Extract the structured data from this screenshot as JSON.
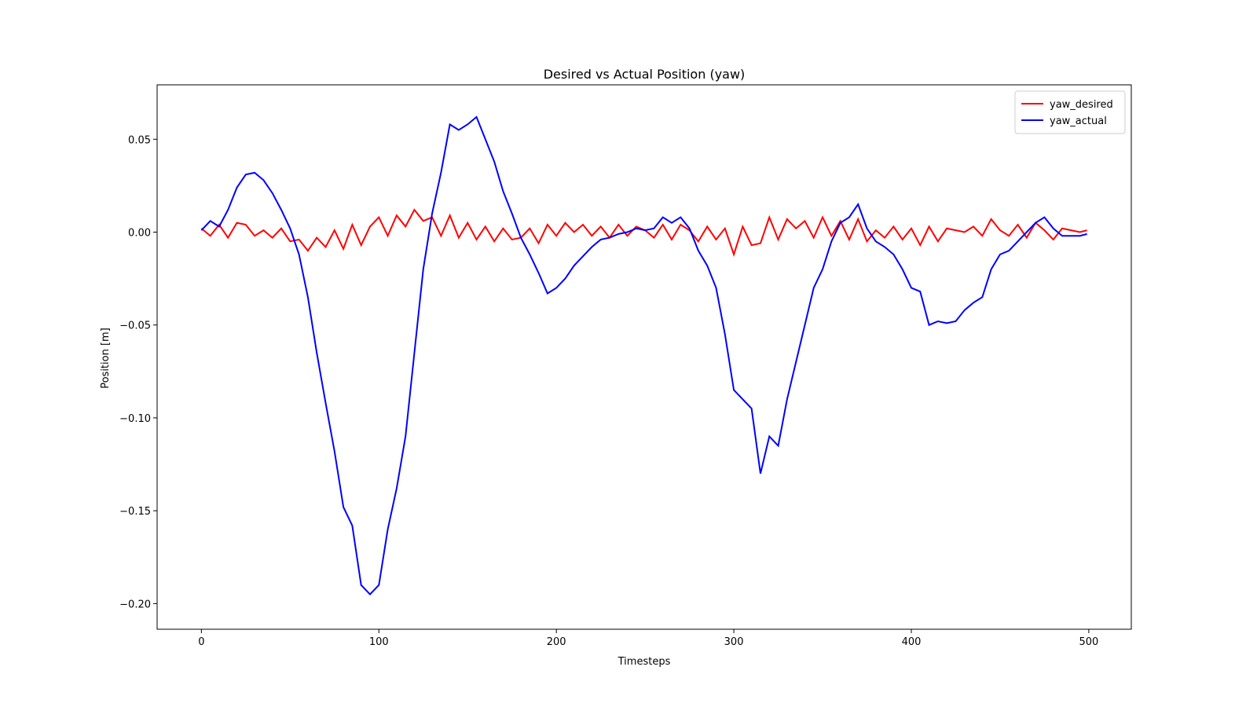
{
  "chart_data": {
    "type": "line",
    "title": "Desired vs Actual Position (yaw)",
    "x_label": "Timesteps",
    "y_label": "Position [m]",
    "x": [
      0,
      5,
      10,
      15,
      20,
      25,
      30,
      35,
      40,
      45,
      50,
      55,
      60,
      65,
      70,
      75,
      80,
      85,
      90,
      95,
      100,
      105,
      110,
      115,
      120,
      125,
      130,
      135,
      140,
      145,
      150,
      155,
      160,
      165,
      170,
      175,
      180,
      185,
      190,
      195,
      200,
      205,
      210,
      215,
      220,
      225,
      230,
      235,
      240,
      245,
      250,
      255,
      260,
      265,
      270,
      275,
      280,
      285,
      290,
      295,
      300,
      305,
      310,
      315,
      320,
      325,
      330,
      335,
      340,
      345,
      350,
      355,
      360,
      365,
      370,
      375,
      380,
      385,
      390,
      395,
      400,
      405,
      410,
      415,
      420,
      425,
      430,
      435,
      440,
      445,
      450,
      455,
      460,
      465,
      470,
      475,
      480,
      485,
      490,
      495,
      499
    ],
    "series": [
      {
        "name": "yaw_desired",
        "color": "#ff0000",
        "values": [
          0.002,
          -0.002,
          0.004,
          -0.003,
          0.005,
          0.004,
          -0.002,
          0.001,
          -0.003,
          0.002,
          -0.005,
          -0.004,
          -0.01,
          -0.003,
          -0.008,
          0.001,
          -0.009,
          0.004,
          -0.007,
          0.003,
          0.008,
          -0.002,
          0.009,
          0.003,
          0.012,
          0.006,
          0.008,
          -0.002,
          0.009,
          -0.003,
          0.005,
          -0.004,
          0.003,
          -0.005,
          0.002,
          -0.004,
          -0.003,
          0.002,
          -0.006,
          0.004,
          -0.002,
          0.005,
          0,
          0.004,
          -0.002,
          0.003,
          -0.003,
          0.004,
          -0.002,
          0.003,
          0.001,
          -0.003,
          0.004,
          -0.004,
          0.004,
          0.001,
          -0.005,
          0.003,
          -0.004,
          0.002,
          -0.012,
          0.003,
          -0.007,
          -0.006,
          0.008,
          -0.004,
          0.007,
          0.002,
          0.006,
          -0.003,
          0.008,
          -0.002,
          0.006,
          -0.004,
          0.007,
          -0.005,
          0.001,
          -0.003,
          0.003,
          -0.004,
          0.002,
          -0.007,
          0.003,
          -0.005,
          0.002,
          0.001,
          0,
          0.003,
          -0.002,
          0.007,
          0.001,
          -0.002,
          0.004,
          -0.003,
          0.005,
          0.001,
          -0.004,
          0.002,
          0.001,
          0,
          0.001
        ]
      },
      {
        "name": "yaw_actual",
        "color": "#0000ff",
        "values": [
          0.001,
          0.006,
          0.003,
          0.012,
          0.024,
          0.031,
          0.032,
          0.028,
          0.021,
          0.012,
          0.002,
          -0.012,
          -0.035,
          -0.065,
          -0.092,
          -0.118,
          -0.148,
          -0.158,
          -0.19,
          -0.195,
          -0.19,
          -0.16,
          -0.138,
          -0.11,
          -0.065,
          -0.02,
          0.01,
          0.032,
          0.058,
          0.055,
          0.058,
          0.062,
          0.05,
          0.038,
          0.022,
          0.01,
          -0.003,
          -0.012,
          -0.022,
          -0.033,
          -0.03,
          -0.025,
          -0.018,
          -0.013,
          -0.008,
          -0.004,
          -0.003,
          -0.001,
          0,
          0.002,
          0.001,
          0.002,
          0.008,
          0.005,
          0.008,
          0.002,
          -0.01,
          -0.018,
          -0.03,
          -0.055,
          -0.085,
          -0.09,
          -0.095,
          -0.13,
          -0.11,
          -0.115,
          -0.09,
          -0.07,
          -0.05,
          -0.03,
          -0.02,
          -0.005,
          0.005,
          0.008,
          0.015,
          0.002,
          -0.005,
          -0.008,
          -0.012,
          -0.02,
          -0.03,
          -0.032,
          -0.05,
          -0.048,
          -0.049,
          -0.048,
          -0.042,
          -0.038,
          -0.035,
          -0.02,
          -0.012,
          -0.01,
          -0.005,
          0,
          0.005,
          0.008,
          0.002,
          -0.002,
          -0.002,
          -0.002,
          -0.001
        ]
      }
    ],
    "xlim": [
      -24.95,
      523.95
    ],
    "ylim": [
      -0.2138,
      0.0793
    ],
    "xticks": [
      0,
      100,
      200,
      300,
      400,
      500
    ],
    "yticks": [
      {
        "value": -0.2,
        "label": "−0.20"
      },
      {
        "value": -0.15,
        "label": "−0.15"
      },
      {
        "value": -0.1,
        "label": "−0.10"
      },
      {
        "value": -0.05,
        "label": "−0.05"
      },
      {
        "value": 0,
        "label": "0.00"
      },
      {
        "value": 0.05,
        "label": "0.05"
      }
    ],
    "legend": "upper right"
  }
}
